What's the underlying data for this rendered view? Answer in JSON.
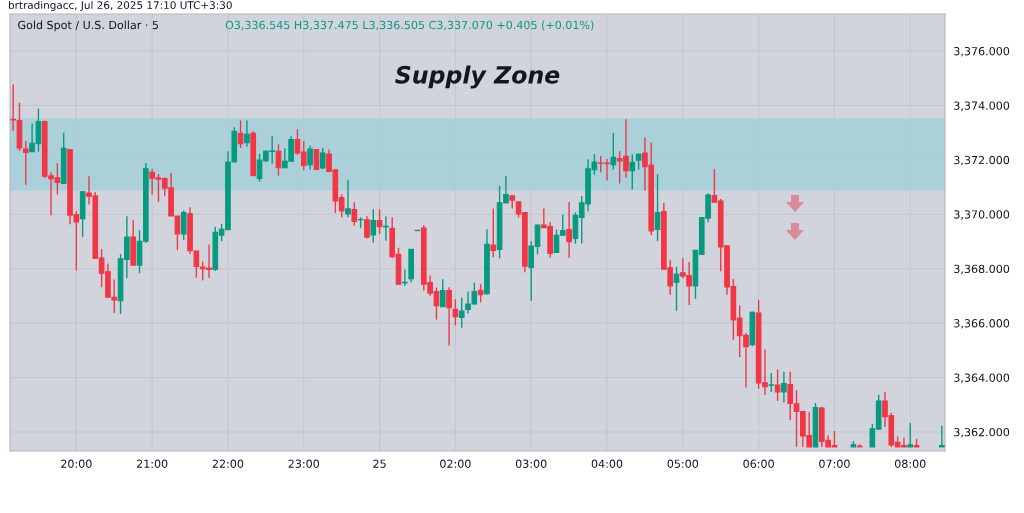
{
  "chart_data": {
    "type": "candlestick",
    "title": "Gold Spot / U.S. Dollar · 5",
    "subtitle": "O3,336.545 H3,337.475 L3,336.505 C3,337.070 +0.405 (+0.01%)",
    "annotations": [
      "brtradingacc, Jul 26, 2025 17:10 UTC+3:30"
    ],
    "colors": [
      "#f23645",
      "#f23645",
      "#f23645",
      "#089981",
      "#089981",
      "#f23645",
      "#f23645",
      "#f23645",
      "#089981",
      "#f23645",
      "#f23645",
      "#089981",
      "#f23645",
      "#f23645",
      "#f23645",
      "#f23645",
      "#f23645",
      "#089981",
      "#089981",
      "#f23645",
      "#089981",
      "#089981",
      "#f23645",
      "#f23645",
      "#f23645",
      "#f23645",
      "#f23645",
      "#089981",
      "#f23645",
      "#f23645",
      "#f23645",
      "#f23645",
      "#089981",
      "#089981",
      "#089981",
      "#089981",
      "#f23645",
      "#089981",
      "#f23645",
      "#089981",
      "#089981",
      "#089981",
      "#f23645",
      "#089981",
      "#089981",
      "#f23645",
      "#f23645",
      "#089981",
      "#f23645",
      "#089981",
      "#f23645",
      "#f23645",
      "#f23645",
      "#089981",
      "#f23645",
      "#089981",
      "#f23645",
      "#089981",
      "#f23645",
      "#089981",
      "#f23645",
      "#f23645",
      "#089981",
      "#089981",
      "#089981",
      "#f23645",
      "#f23645",
      "#f23645",
      "#089981",
      "#f23645",
      "#f23645",
      "#089981",
      "#089981",
      "#089981",
      "#f23645",
      "#089981",
      "#f23645",
      "#089981",
      "#089981",
      "#f23645",
      "#f23645",
      "#f23645",
      "#089981",
      "#089981",
      "#f23645",
      "#f23645",
      "#089981",
      "#089981",
      "#f23645",
      "#089981",
      "#089981",
      "#089981",
      "#089981",
      "#f23645",
      "#f23645",
      "#089981",
      "#f23645",
      "#f23645",
      "#089981",
      "#089981",
      "#f23645",
      "#f23645",
      "#089981",
      "#f23645",
      "#f23645",
      "#089981",
      "#f23645",
      "#f23645",
      "#089981",
      "#089981",
      "#089981",
      "#f23645",
      "#f23645",
      "#f23645",
      "#f23645",
      "#f23645",
      "#f23645",
      "#089981",
      "#f23645",
      "#f23645",
      "#089981",
      "#f23645",
      "#089981",
      "#f23645",
      "#f23645",
      "#f23645",
      "#f23645",
      "#089981",
      "#f23645",
      "#f23645",
      "#f23645",
      null,
      null,
      "#089981",
      "#f23645",
      null,
      "#089981",
      "#089981",
      "#f23645",
      "#f23645",
      "#f23645",
      "#f23645",
      "#089981",
      "#f23645",
      null,
      null,
      null,
      "#089981"
    ],
    "categories": [
      null,
      null,
      null,
      null,
      null,
      null,
      null,
      null,
      null,
      null,
      "20:00",
      null,
      null,
      null,
      null,
      null,
      null,
      null,
      null,
      null,
      null,
      null,
      "21:00",
      null,
      null,
      null,
      null,
      null,
      null,
      null,
      null,
      null,
      null,
      null,
      "22:00",
      null,
      null,
      null,
      null,
      null,
      null,
      null,
      null,
      null,
      null,
      null,
      "23:00",
      null,
      null,
      null,
      null,
      null,
      null,
      null,
      null,
      null,
      null,
      null,
      "25",
      null,
      null,
      null,
      null,
      null,
      null,
      null,
      null,
      null,
      null,
      null,
      "02:00",
      null,
      null,
      null,
      null,
      null,
      null,
      null,
      null,
      null,
      null,
      null,
      "03:00",
      null,
      null,
      null,
      null,
      null,
      null,
      null,
      null,
      null,
      null,
      null,
      "04:00",
      null,
      null,
      null,
      null,
      null,
      null,
      null,
      null,
      null,
      null,
      null,
      "05:00",
      null,
      null,
      null,
      null,
      null,
      null,
      null,
      null,
      null,
      null,
      null,
      "06:00",
      null,
      null,
      null,
      null,
      null,
      null,
      null,
      null,
      null,
      null,
      null,
      "07:00",
      null,
      null,
      null,
      null,
      null,
      null,
      null,
      null,
      null,
      null,
      null,
      "08:00",
      null,
      null,
      null,
      null,
      null
    ],
    "ohlc": [
      [
        3373.49,
        3374.77,
        3373.06,
        3373.47
      ],
      [
        3373.44,
        3374.1,
        3372.33,
        3372.44
      ],
      [
        3372.4,
        3372.69,
        3371.08,
        3372.27
      ],
      [
        3372.3,
        3373.34,
        3372.3,
        3372.61
      ],
      [
        3372.59,
        3373.88,
        3372.3,
        3373.41
      ],
      [
        3373.41,
        3373.45,
        3371.33,
        3371.4
      ],
      [
        3371.41,
        3371.54,
        3369.96,
        3371.31
      ],
      [
        3371.34,
        3371.88,
        3370.73,
        3371.17
      ],
      [
        3371.13,
        3373.0,
        3371.13,
        3372.42
      ],
      [
        3372.38,
        3372.38,
        3369.63,
        3369.97
      ],
      [
        3369.99,
        3370.11,
        3367.93,
        3369.72
      ],
      [
        3369.84,
        3370.86,
        3369.17,
        3370.83
      ],
      [
        3370.78,
        3371.4,
        3370.36,
        3370.66
      ],
      [
        3370.68,
        3370.81,
        3368.38,
        3368.38
      ],
      [
        3368.39,
        3368.72,
        3367.32,
        3367.83
      ],
      [
        3367.89,
        3368.19,
        3366.93,
        3366.95
      ],
      [
        3366.95,
        3367.6,
        3366.37,
        3366.85
      ],
      [
        3366.82,
        3368.54,
        3366.34,
        3368.36
      ],
      [
        3368.34,
        3369.93,
        3367.65,
        3369.16
      ],
      [
        3369.16,
        3369.8,
        3368.13,
        3368.13
      ],
      [
        3368.13,
        3369.41,
        3367.83,
        3369.01
      ],
      [
        3369.01,
        3371.88,
        3368.95,
        3371.67
      ],
      [
        3371.54,
        3371.67,
        3370.73,
        3371.33
      ],
      [
        3371.34,
        3371.48,
        3370.45,
        3371.29
      ],
      [
        3371.31,
        3371.36,
        3370.66,
        3370.96
      ],
      [
        3370.97,
        3371.52,
        3369.94,
        3369.94
      ],
      [
        3369.93,
        3369.93,
        3368.68,
        3369.28
      ],
      [
        3369.28,
        3370.14,
        3369.05,
        3370.06
      ],
      [
        3370.02,
        3370.26,
        3368.54,
        3368.66
      ],
      [
        3368.65,
        3368.65,
        3367.67,
        3368.08
      ],
      [
        3368.06,
        3368.26,
        3367.57,
        3368.0
      ],
      [
        3368.02,
        3368.89,
        3367.67,
        3367.97
      ],
      [
        3367.97,
        3369.54,
        3367.92,
        3369.34
      ],
      [
        3369.23,
        3369.65,
        3369.01,
        3369.45
      ],
      [
        3369.43,
        3372.32,
        3369.43,
        3371.92
      ],
      [
        3371.92,
        3373.2,
        3371.92,
        3373.05
      ],
      [
        3372.98,
        3373.45,
        3372.44,
        3372.59
      ],
      [
        3372.63,
        3373.45,
        3372.48,
        3372.94
      ],
      [
        3372.98,
        3373.05,
        3371.42,
        3371.42
      ],
      [
        3371.32,
        3372.22,
        3371.2,
        3371.99
      ],
      [
        3371.97,
        3372.36,
        3371.91,
        3372.31
      ],
      [
        3372.31,
        3372.87,
        3371.87,
        3372.33
      ],
      [
        3372.31,
        3372.57,
        3371.42,
        3371.71
      ],
      [
        3371.71,
        3372.43,
        3371.71,
        3371.95
      ],
      [
        3371.95,
        3372.87,
        3371.95,
        3372.75
      ],
      [
        3372.75,
        3373.13,
        3372.18,
        3372.25
      ],
      [
        3372.29,
        3372.69,
        3371.62,
        3371.79
      ],
      [
        3371.82,
        3372.52,
        3371.64,
        3372.4
      ],
      [
        3372.38,
        3372.38,
        3371.65,
        3371.65
      ],
      [
        3371.7,
        3372.43,
        3371.65,
        3372.25
      ],
      [
        3372.21,
        3372.38,
        3371.57,
        3371.57
      ],
      [
        3371.63,
        3371.63,
        3370.05,
        3370.49
      ],
      [
        3370.61,
        3370.73,
        3369.89,
        3370.12
      ],
      [
        3370.01,
        3371.26,
        3369.89,
        3370.2
      ],
      [
        3370.17,
        3370.44,
        3369.58,
        3369.74
      ],
      [
        3369.8,
        3369.89,
        3369.49,
        3369.81
      ],
      [
        3369.8,
        3369.93,
        3369.11,
        3369.16
      ],
      [
        3369.24,
        3370.18,
        3368.95,
        3369.77
      ],
      [
        3369.77,
        3370.18,
        3369.27,
        3369.54
      ],
      [
        3369.54,
        3369.93,
        3369.03,
        3369.56
      ],
      [
        3369.48,
        3369.89,
        3368.38,
        3368.44
      ],
      [
        3368.53,
        3368.77,
        3367.41,
        3367.43
      ],
      [
        3367.48,
        3367.97,
        3367.36,
        3367.5
      ],
      [
        3367.63,
        3368.71,
        3367.5,
        3368.71
      ],
      [
        3369.4,
        3369.41,
        3369.4,
        3369.41
      ],
      [
        3369.49,
        3369.6,
        3367.19,
        3367.43
      ],
      [
        3367.49,
        3367.75,
        3367.01,
        3367.1
      ],
      [
        3367.16,
        3367.31,
        3366.13,
        3366.64
      ],
      [
        3366.6,
        3367.61,
        3366.6,
        3367.2
      ],
      [
        3367.2,
        3367.32,
        3365.18,
        3366.57
      ],
      [
        3366.51,
        3366.88,
        3365.91,
        3366.24
      ],
      [
        3366.21,
        3366.94,
        3365.83,
        3366.44
      ],
      [
        3366.5,
        3367.16,
        3366.35,
        3366.7
      ],
      [
        3366.7,
        3367.49,
        3366.68,
        3367.16
      ],
      [
        3367.21,
        3367.43,
        3366.76,
        3367.04
      ],
      [
        3367.08,
        3369.45,
        3367.04,
        3368.9
      ],
      [
        3368.87,
        3370.21,
        3368.42,
        3368.67
      ],
      [
        3368.71,
        3371.04,
        3368.38,
        3370.42
      ],
      [
        3370.42,
        3371.41,
        3370.42,
        3370.72
      ],
      [
        3370.68,
        3370.68,
        3370.21,
        3370.52
      ],
      [
        3370.46,
        3370.46,
        3369.88,
        3370.01
      ],
      [
        3370.06,
        3370.06,
        3367.87,
        3368.09
      ],
      [
        3368.05,
        3369.01,
        3366.82,
        3368.83
      ],
      [
        3368.82,
        3369.62,
        3368.53,
        3369.6
      ],
      [
        3369.6,
        3370.21,
        3369.51,
        3369.51
      ],
      [
        3369.55,
        3369.72,
        3368.4,
        3368.56
      ],
      [
        3368.6,
        3369.44,
        3368.6,
        3369.23
      ],
      [
        3369.23,
        3369.99,
        3369.21,
        3369.4
      ],
      [
        3369.44,
        3370.45,
        3368.4,
        3368.99
      ],
      [
        3369.11,
        3370.07,
        3368.92,
        3369.96
      ],
      [
        3369.88,
        3370.67,
        3368.93,
        3370.42
      ],
      [
        3370.38,
        3372.02,
        3370.11,
        3371.67
      ],
      [
        3371.64,
        3372.21,
        3371.45,
        3371.92
      ],
      [
        3371.88,
        3372.14,
        3371.54,
        3371.87
      ],
      [
        3371.88,
        3372.03,
        3371.24,
        3371.86
      ],
      [
        3371.82,
        3373.0,
        3371.64,
        3372.09
      ],
      [
        3372.05,
        3372.32,
        3371.13,
        3371.96
      ],
      [
        3372.13,
        3373.49,
        3371.35,
        3371.6
      ],
      [
        3371.6,
        3372.21,
        3370.91,
        3371.91
      ],
      [
        3371.99,
        3372.24,
        3371.64,
        3372.2
      ],
      [
        3372.25,
        3372.82,
        3370.87,
        3371.75
      ],
      [
        3371.81,
        3372.64,
        3369.23,
        3369.39
      ],
      [
        3369.44,
        3371.47,
        3369.01,
        3370.06
      ],
      [
        3370.1,
        3370.41,
        3367.98,
        3367.98
      ],
      [
        3368.03,
        3368.33,
        3367.04,
        3367.37
      ],
      [
        3367.5,
        3368.07,
        3366.45,
        3367.8
      ],
      [
        3367.85,
        3368.38,
        3367.65,
        3367.73
      ],
      [
        3367.75,
        3368.25,
        3366.67,
        3367.37
      ],
      [
        3367.37,
        3368.68,
        3366.89,
        3368.68
      ],
      [
        3368.52,
        3369.88,
        3368.52,
        3369.88
      ],
      [
        3369.86,
        3370.77,
        3369.71,
        3370.71
      ],
      [
        3370.69,
        3371.66,
        3370.44,
        3370.44
      ],
      [
        3370.49,
        3370.56,
        3367.91,
        3368.8
      ],
      [
        3368.84,
        3368.86,
        3367.04,
        3367.33
      ],
      [
        3367.34,
        3367.62,
        3365.39,
        3366.12
      ],
      [
        3366.19,
        3366.65,
        3364.75,
        3365.54
      ],
      [
        3365.55,
        3365.64,
        3363.63,
        3365.13
      ],
      [
        3365.21,
        3366.43,
        3365.15,
        3366.4
      ],
      [
        3366.37,
        3366.85,
        3363.59,
        3363.8
      ],
      [
        3363.81,
        3365.03,
        3363.36,
        3363.66
      ],
      [
        3363.72,
        3364.17,
        3363.47,
        3363.73
      ],
      [
        3363.72,
        3364.3,
        3363.14,
        3363.47
      ],
      [
        3363.47,
        3364.21,
        3363.08,
        3363.78
      ],
      [
        3363.74,
        3364.21,
        3362.44,
        3363.05
      ],
      [
        3363.03,
        3363.54,
        3361.45,
        3362.75
      ],
      [
        3362.75,
        3362.78,
        3361.45,
        3361.85
      ],
      [
        3361.87,
        3362.72,
        3361.45,
        3361.45
      ],
      [
        3361.45,
        3363.06,
        3361.45,
        3362.9
      ],
      [
        3362.88,
        3362.93,
        3361.45,
        3361.65
      ],
      [
        3361.69,
        3361.87,
        3361.45,
        3361.45
      ],
      [
        3361.5,
        3362.04,
        3361.45,
        3361.45
      ],
      null,
      null,
      [
        3361.45,
        3361.66,
        3361.45,
        3361.53
      ],
      [
        3361.48,
        3361.55,
        3361.45,
        3361.45
      ],
      null,
      [
        3361.45,
        3362.3,
        3361.45,
        3362.12
      ],
      [
        3362.1,
        3363.37,
        3362.1,
        3363.14
      ],
      [
        3363.14,
        3363.47,
        3362.18,
        3362.56
      ],
      [
        3362.6,
        3362.71,
        3361.45,
        3361.52
      ],
      [
        3361.62,
        3361.83,
        3361.45,
        3361.45
      ],
      [
        3361.5,
        3361.79,
        3361.45,
        3361.45
      ],
      [
        3361.45,
        3362.33,
        3361.45,
        3361.53
      ],
      [
        3361.5,
        3361.75,
        3361.45,
        3361.45
      ],
      null,
      null,
      null,
      [
        3361.45,
        3362.23,
        3361.45,
        3361.5
      ]
    ],
    "ylim": [
      3361.3,
      3377.36
    ],
    "yticks": [
      {
        "value": 3362,
        "label": "3,362.000"
      },
      {
        "value": 3364,
        "label": "3,364.000"
      },
      {
        "value": 3366,
        "label": "3,366.000"
      },
      {
        "value": 3368,
        "label": "3,368.000"
      },
      {
        "value": 3370,
        "label": "3,370.000"
      },
      {
        "value": 3372,
        "label": "3,372.000"
      },
      {
        "value": 3374,
        "label": "3,374.000"
      },
      {
        "value": 3376,
        "label": "3,376.000"
      }
    ],
    "bands": [
      {
        "axis": "y",
        "from": 3370.9,
        "to": 3373.5,
        "label": "Supply Zone",
        "color": "#a6d0da"
      }
    ],
    "grid": true
  }
}
